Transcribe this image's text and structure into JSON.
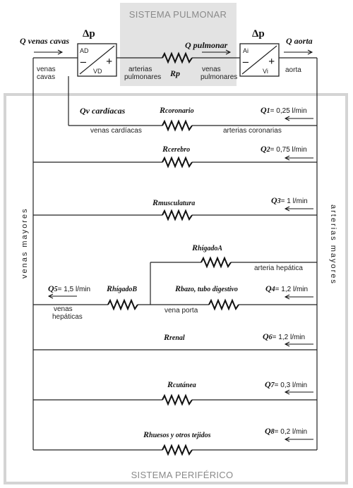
{
  "systems": {
    "pulmonary": "SISTEMA PULMONAR",
    "peripheral": "SISTEMA PERIFÉRICO"
  },
  "top": {
    "q_venas_cavas": "Q venas cavas",
    "q_pulmonar": "Q pulmonar",
    "q_aorta": "Q aorta",
    "delta_p": "Δp",
    "right_heart": {
      "top": "AD",
      "bottom": "VD",
      "minus": "–",
      "plus": "+"
    },
    "left_heart": {
      "top": "Ai",
      "bottom": "Vi",
      "minus": "–",
      "plus": "+"
    },
    "venas_cavas_1": "venas",
    "venas_cavas_2": "cavas",
    "arterias_pulm_1": "arterias",
    "arterias_pulm_2": "pulmonares",
    "venas_pulm_1": "venas",
    "venas_pulm_2": "pulmonares",
    "rp": "Rp",
    "aorta": "aorta"
  },
  "side": {
    "left": "venas mayores",
    "right": "arterias mayores"
  },
  "branches": [
    {
      "r_main": "R",
      "r_sub": "coronario",
      "q_main": "Q",
      "q_sub": "1",
      "value": "= 0,25 l/min",
      "left_text": "Qv cardíacas",
      "left_label": "venas cardíacas",
      "right_label": "arterias coronarias"
    },
    {
      "r_main": "R",
      "r_sub": "cerebro",
      "q_main": "Q",
      "q_sub": "2",
      "value": "= 0,75 l/min"
    },
    {
      "r_main": "R",
      "r_sub": "musculatura",
      "q_main": "Q",
      "q_sub": "3",
      "value": "= 1 l/min"
    },
    {
      "r_main": "R",
      "r_sub": "hígadoA",
      "label": "arteria hepática"
    },
    {
      "r_main": "R",
      "r_sub": "bazo, tubo digestivo",
      "q_main": "Q",
      "q_sub": "4",
      "value": "= 1,2 l/min",
      "label": "vena porta"
    },
    {
      "r_main": "R",
      "r_sub": "hígadoB",
      "q_main": "Q",
      "q_sub": "5",
      "value": "= 1,5 l/min",
      "label_1": "venas",
      "label_2": "hepáticas"
    },
    {
      "r_main": "R",
      "r_sub": "renal",
      "q_main": "Q",
      "q_sub": "6",
      "value": "= 1,2 l/min"
    },
    {
      "r_main": "R",
      "r_sub": "cutánea",
      "q_main": "Q",
      "q_sub": "7",
      "value": "= 0,3 l/min"
    },
    {
      "r_main": "R",
      "r_sub": "huesos y otros tejidos",
      "q_main": "Q",
      "q_sub": "8",
      "value": "= 0,2 l/min"
    }
  ],
  "colors": {
    "pulmonary_fill": "#e3e3e3",
    "peripheral_border": "#d4d4d4",
    "line": "#222222"
  }
}
